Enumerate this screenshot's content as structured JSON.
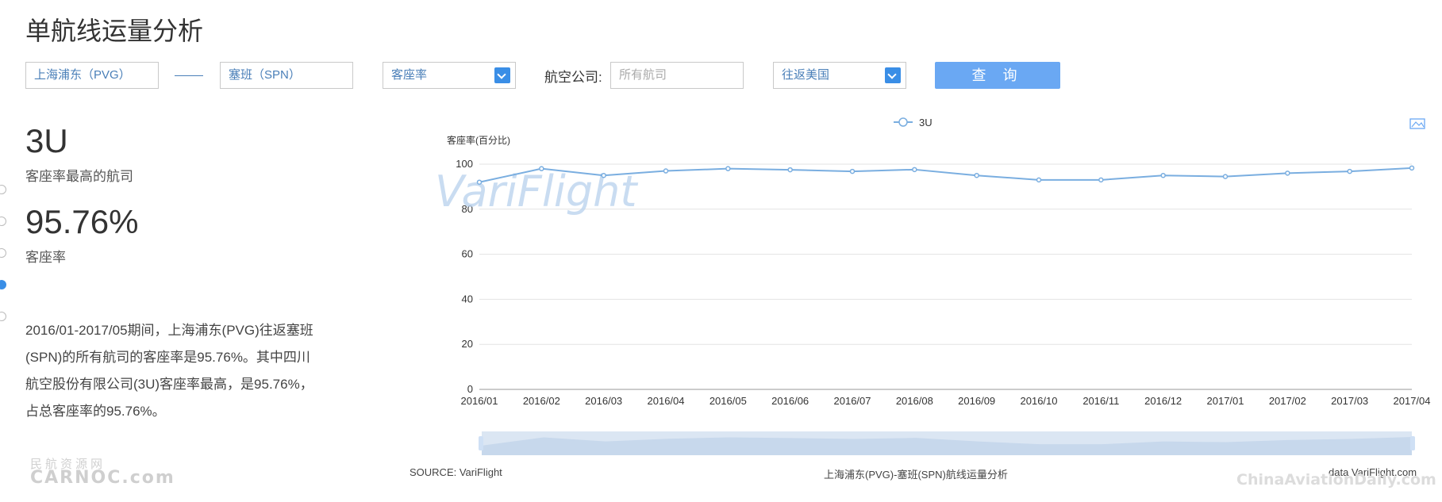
{
  "page": {
    "title": "单航线运量分析"
  },
  "filters": {
    "origin_value": "上海浦东（PVG）",
    "destination_value": "塞班（SPN）",
    "metric_value": "客座率",
    "airline_label": "航空公司:",
    "airline_placeholder": "所有航司",
    "direction_value": "往返美国",
    "query_label": "查 询"
  },
  "summary": {
    "top_airline_code": "3U",
    "top_airline_caption": "客座率最高的航司",
    "rate_value": "95.76%",
    "rate_caption": "客座率",
    "description": "2016/01-2017/05期间，上海浦东(PVG)往返塞班(SPN)的所有航司的客座率是95.76%。其中四川航空股份有限公司(3U)客座率最高，是95.76%，占总客座率的95.76%。"
  },
  "nav_dots": {
    "count": 5,
    "active_index": 3
  },
  "watermarks": {
    "chart": "VariFlight",
    "left_logo_top": "民航资源网",
    "left_logo_bottom": "CARNOC.com",
    "right_logo": "ChinaAviationDaily.com"
  },
  "footer": {
    "source": "SOURCE: VariFlight",
    "chart_caption": "上海浦东(PVG)-塞班(SPN)航线运量分析",
    "data_credit": "data VariFlight.com"
  },
  "icons": {
    "download": "image-download-icon"
  },
  "colors": {
    "accent": "#3a8ee6",
    "line": "#7aaee0",
    "button": "#6aa8f3"
  },
  "chart_data": {
    "type": "line",
    "ylabel": "客座率(百分比)",
    "ylim": [
      0,
      100
    ],
    "yticks": [
      0,
      20,
      40,
      60,
      80,
      100
    ],
    "categories": [
      "2016/01",
      "2016/02",
      "2016/03",
      "2016/04",
      "2016/05",
      "2016/06",
      "2016/07",
      "2016/08",
      "2016/09",
      "2016/10",
      "2016/11",
      "2016/12",
      "2017/01",
      "2017/02",
      "2017/03",
      "2017/04"
    ],
    "series": [
      {
        "name": "3U",
        "values": [
          92,
          98,
          95,
          97,
          98,
          97.5,
          96.8,
          97.6,
          95,
          93,
          93,
          95,
          94.5,
          96,
          96.8,
          98.3
        ]
      }
    ],
    "legend": "top-center",
    "grid": true
  }
}
